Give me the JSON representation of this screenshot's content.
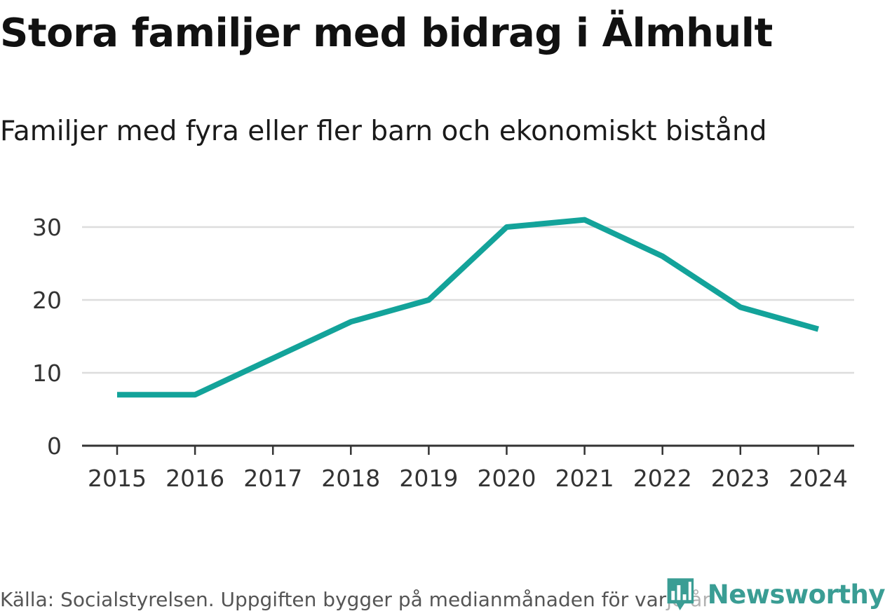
{
  "title": "Stora familjer med bidrag i Älmhult",
  "subtitle": "Familjer med fyra eller fler barn och ekonomiskt bistånd",
  "source": "Källa: Socialstyrelsen. Uppgiften bygger på medianmånaden för varje år",
  "brand": {
    "name": "Newsworthy",
    "logo_icon": "bar-chart-speech-bubble-icon",
    "color": "#3a9d94"
  },
  "colors": {
    "line": "#13a39a",
    "gridline": "#dddddd",
    "axis": "#333333"
  },
  "chart_data": {
    "type": "line",
    "title": "Stora familjer med bidrag i Älmhult",
    "subtitle": "Familjer med fyra eller fler barn och ekonomiskt bistånd",
    "xlabel": "",
    "ylabel": "",
    "x": [
      "2015",
      "2016",
      "2017",
      "2018",
      "2019",
      "2020",
      "2021",
      "2022",
      "2023",
      "2024"
    ],
    "series": [
      {
        "name": "Familjer med fyra eller fler barn och ekonomiskt bistånd",
        "values": [
          7,
          7,
          12,
          17,
          20,
          30,
          31,
          26,
          19,
          16
        ]
      }
    ],
    "ylim": [
      0,
      30
    ],
    "yticks": [
      0,
      10,
      20,
      30
    ],
    "grid": true,
    "legend": "none"
  }
}
